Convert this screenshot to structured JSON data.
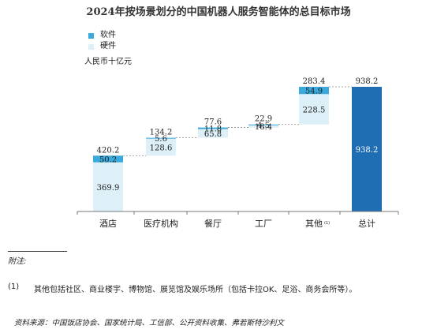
{
  "chart_data": {
    "type": "bar",
    "title": "2024年按场景划分的中国机器人服务智能体的总目标市场",
    "unit_label": "人民币十亿元",
    "categories": [
      "酒店",
      "医疗机构",
      "餐厅",
      "工厂",
      "其他",
      "总计"
    ],
    "category_superscript": [
      "",
      "",
      "",
      "",
      "(1)",
      ""
    ],
    "series": [
      {
        "name": "软件",
        "values": [
          50.2,
          5.6,
          11.8,
          4.5,
          54.9,
          null
        ]
      },
      {
        "name": "硬件",
        "values": [
          369.9,
          128.6,
          65.8,
          18.4,
          228.5,
          null
        ]
      }
    ],
    "category_totals": [
      420.2,
      134.2,
      77.6,
      22.9,
      283.4,
      938.2
    ],
    "total_bar_value": 938.2,
    "colors": {
      "software": "#3aa9dc",
      "hardware": "#ddf0f8",
      "total": "#1f6db3"
    }
  },
  "notes": {
    "label": "附注:",
    "footnote_number": "(1)",
    "footnote_text": "其他包括社区、商业楼宇、博物馆、展览馆及娱乐场所（包括卡拉OK、足浴、商务会所等）。",
    "source": "资料来源：中国饭店协会、国家统计局、工信部、公开资料收集、弗若斯特沙利文"
  }
}
